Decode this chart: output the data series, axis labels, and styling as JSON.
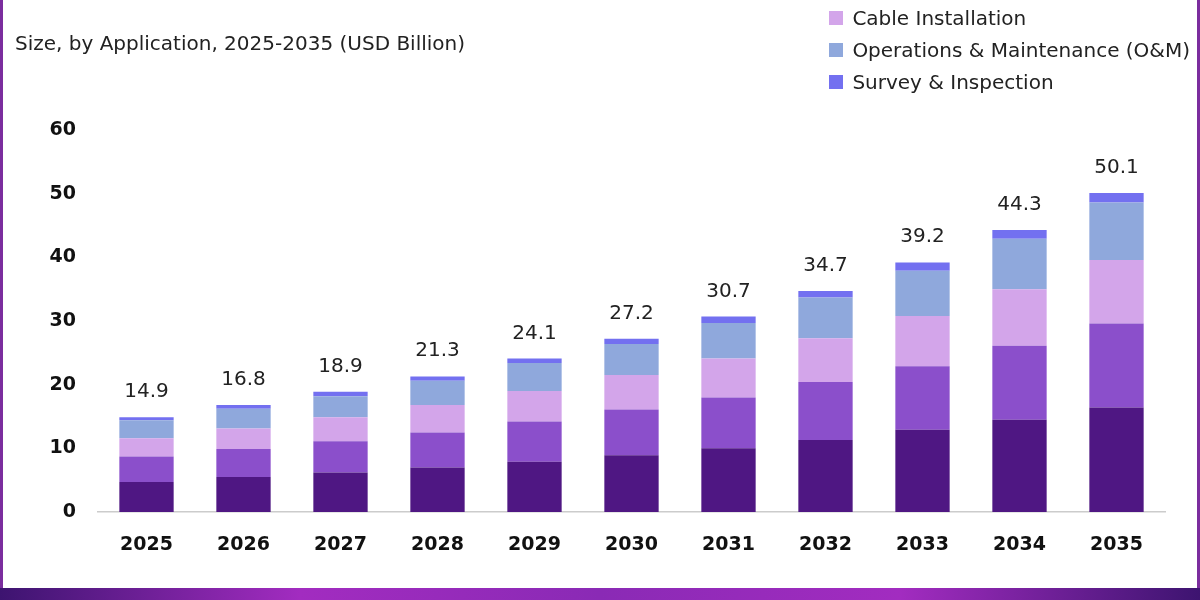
{
  "chart_data": {
    "type": "bar",
    "title": "Size, by Application, 2025-2035 (USD Billion)",
    "categories": [
      "2025",
      "2026",
      "2027",
      "2028",
      "2029",
      "2030",
      "2031",
      "2032",
      "2033",
      "2034",
      "2035"
    ],
    "stacked": true,
    "series": [
      {
        "color": "#4f1783",
        "values": [
          4.7,
          5.5,
          6.2,
          7.0,
          7.9,
          8.9,
          10.0,
          11.3,
          12.9,
          14.5,
          16.4
        ]
      },
      {
        "color": "#8b4fcb",
        "values": [
          4.0,
          4.4,
          4.9,
          5.5,
          6.3,
          7.2,
          8.0,
          9.1,
          10.0,
          11.6,
          13.2
        ]
      },
      {
        "name": "Cable Installation",
        "color": "#d3a5ea",
        "values": [
          2.9,
          3.2,
          3.8,
          4.3,
          4.8,
          5.4,
          6.1,
          6.9,
          7.9,
          8.9,
          10.0
        ]
      },
      {
        "name": "Operations & Maintenance (O&M)",
        "color": "#8fa8dc",
        "values": [
          2.8,
          3.1,
          3.3,
          3.8,
          4.4,
          4.9,
          5.6,
          6.4,
          7.1,
          7.9,
          9.0
        ]
      },
      {
        "name": "Survey & Inspection",
        "color": "#7370f0",
        "values": [
          0.5,
          0.6,
          0.7,
          0.7,
          0.7,
          0.8,
          1.0,
          1.0,
          1.3,
          1.4,
          1.5
        ]
      }
    ],
    "totals": [
      "14.9",
      "16.8",
      "18.9",
      "21.3",
      "24.1",
      "27.2",
      "30.7",
      "34.7",
      "39.2",
      "44.3",
      "50.1"
    ],
    "ylim": [
      0,
      60
    ],
    "yticks": [
      0,
      10,
      20,
      30,
      40,
      50,
      60
    ],
    "legend": "top right"
  }
}
